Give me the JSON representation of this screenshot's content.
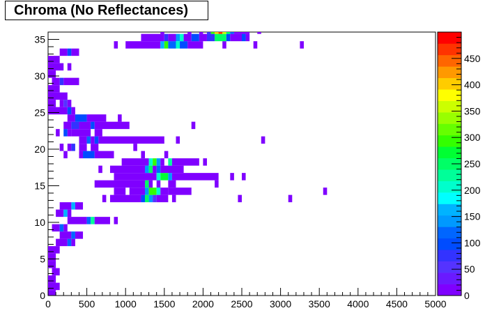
{
  "chart_data": {
    "type": "heatmap",
    "title": "Chroma (No Reflectances)",
    "xlabel": "",
    "ylabel": "",
    "xlim": [
      0,
      5000
    ],
    "ylim": [
      0,
      36
    ],
    "zlim": [
      0,
      500
    ],
    "x_ticks": [
      "0",
      "500",
      "1000",
      "1500",
      "2000",
      "2500",
      "3000",
      "3500",
      "4000",
      "4500",
      "5000"
    ],
    "y_ticks": [
      "0",
      "5",
      "10",
      "15",
      "20",
      "25",
      "30",
      "35"
    ],
    "z_ticks": [
      "0",
      "50",
      "100",
      "150",
      "200",
      "250",
      "300",
      "350",
      "400",
      "450"
    ],
    "bin_width_x": 50,
    "bin_width_y": 1,
    "palette": [
      "#7f00ff",
      "#6a1aff",
      "#5533ff",
      "#3333ff",
      "#004cff",
      "#0066ff",
      "#0099ff",
      "#00b3ff",
      "#00ffff",
      "#00ffcc",
      "#00ff99",
      "#00ff66",
      "#00ff33",
      "#33ff00",
      "#66ff00",
      "#99ff00",
      "#ccff00",
      "#ffff00",
      "#ffcc00",
      "#ff9900",
      "#ff6600",
      "#ff3300",
      "#ff0000"
    ],
    "bins": [
      {
        "y": 0,
        "segments": [
          [
            0,
            100,
            20
          ]
        ]
      },
      {
        "y": 1,
        "segments": [
          [
            0,
            150,
            20
          ]
        ]
      },
      {
        "y": 2,
        "segments": [
          [
            0,
            100,
            20
          ]
        ]
      },
      {
        "y": 3,
        "segments": [
          [
            50,
            150,
            20
          ]
        ]
      },
      {
        "y": 4,
        "segments": [
          [
            0,
            100,
            20
          ]
        ]
      },
      {
        "y": 5,
        "segments": [
          [
            0,
            100,
            20
          ]
        ]
      },
      {
        "y": 6,
        "segments": [
          [
            0,
            150,
            20
          ]
        ]
      },
      {
        "y": 7,
        "segments": [
          [
            100,
            250,
            20
          ],
          [
            250,
            300,
            120
          ],
          [
            300,
            350,
            20
          ]
        ]
      },
      {
        "y": 8,
        "segments": [
          [
            150,
            300,
            20
          ],
          [
            300,
            350,
            120
          ],
          [
            350,
            450,
            20
          ]
        ]
      },
      {
        "y": 9,
        "segments": [
          [
            50,
            150,
            20
          ],
          [
            150,
            200,
            120
          ],
          [
            200,
            250,
            20
          ]
        ]
      },
      {
        "y": 10,
        "segments": [
          [
            250,
            500,
            20
          ],
          [
            500,
            550,
            120
          ],
          [
            550,
            600,
            220
          ],
          [
            600,
            800,
            20
          ],
          [
            850,
            900,
            20
          ]
        ]
      },
      {
        "y": 11,
        "segments": [
          [
            100,
            200,
            20
          ],
          [
            200,
            250,
            170
          ],
          [
            250,
            300,
            20
          ]
        ]
      },
      {
        "y": 12,
        "segments": [
          [
            150,
            300,
            20
          ],
          [
            300,
            350,
            170
          ],
          [
            350,
            450,
            20
          ]
        ]
      },
      {
        "y": 13,
        "segments": [
          [
            700,
            750,
            20
          ],
          [
            800,
            1200,
            20
          ],
          [
            1200,
            1250,
            100
          ],
          [
            1250,
            1300,
            250
          ],
          [
            1300,
            1350,
            150
          ],
          [
            1350,
            1400,
            50
          ],
          [
            1400,
            1550,
            20
          ],
          [
            1600,
            1650,
            20
          ],
          [
            2450,
            2500,
            20
          ],
          [
            3100,
            3150,
            20
          ]
        ]
      },
      {
        "y": 14,
        "segments": [
          [
            850,
            1000,
            20
          ],
          [
            1050,
            1250,
            20
          ],
          [
            1250,
            1300,
            150
          ],
          [
            1300,
            1400,
            300
          ],
          [
            1400,
            1450,
            200
          ],
          [
            1450,
            1550,
            20
          ],
          [
            1550,
            1850,
            20
          ],
          [
            3550,
            3600,
            20
          ]
        ]
      },
      {
        "y": 15,
        "segments": [
          [
            600,
            1250,
            20
          ],
          [
            1250,
            1300,
            250
          ],
          [
            1300,
            1350,
            20
          ],
          [
            1400,
            1450,
            20
          ],
          [
            1550,
            1650,
            20
          ],
          [
            2150,
            2200,
            20
          ]
        ]
      },
      {
        "y": 16,
        "segments": [
          [
            850,
            1400,
            20
          ],
          [
            1400,
            1450,
            200
          ],
          [
            1450,
            1550,
            280
          ],
          [
            1550,
            1600,
            150
          ],
          [
            1600,
            2200,
            20
          ],
          [
            2350,
            2400,
            20
          ],
          [
            2500,
            2550,
            20
          ]
        ]
      },
      {
        "y": 17,
        "segments": [
          [
            650,
            700,
            20
          ],
          [
            800,
            1250,
            20
          ],
          [
            1250,
            1300,
            150
          ],
          [
            1300,
            1350,
            250
          ],
          [
            1350,
            1400,
            20
          ],
          [
            1400,
            1450,
            120
          ],
          [
            1450,
            1750,
            20
          ]
        ]
      },
      {
        "y": 18,
        "segments": [
          [
            950,
            1300,
            20
          ],
          [
            1300,
            1350,
            200
          ],
          [
            1350,
            1400,
            300
          ],
          [
            1400,
            1450,
            150
          ],
          [
            1450,
            1500,
            20
          ],
          [
            1550,
            1600,
            220
          ],
          [
            1600,
            1950,
            20
          ],
          [
            2000,
            2050,
            20
          ]
        ]
      },
      {
        "y": 19,
        "segments": [
          [
            200,
            250,
            20
          ],
          [
            400,
            450,
            20
          ],
          [
            450,
            600,
            100
          ],
          [
            600,
            850,
            20
          ],
          [
            1200,
            1250,
            20
          ],
          [
            1500,
            1550,
            20
          ]
        ]
      },
      {
        "y": 20,
        "segments": [
          [
            150,
            200,
            20
          ],
          [
            250,
            300,
            20
          ],
          [
            300,
            350,
            70
          ],
          [
            400,
            500,
            20
          ],
          [
            550,
            650,
            20
          ],
          [
            1100,
            1150,
            20
          ]
        ]
      },
      {
        "y": 21,
        "segments": [
          [
            400,
            500,
            20
          ],
          [
            500,
            550,
            120
          ],
          [
            550,
            600,
            20
          ],
          [
            600,
            650,
            100
          ],
          [
            650,
            1500,
            20
          ],
          [
            1650,
            1700,
            20
          ],
          [
            2750,
            2800,
            20
          ]
        ]
      },
      {
        "y": 22,
        "segments": [
          [
            100,
            150,
            20
          ],
          [
            200,
            250,
            100
          ],
          [
            250,
            300,
            20
          ],
          [
            300,
            550,
            20
          ],
          [
            600,
            700,
            20
          ]
        ]
      },
      {
        "y": 23,
        "segments": [
          [
            200,
            300,
            20
          ],
          [
            300,
            400,
            70
          ],
          [
            400,
            550,
            20
          ],
          [
            550,
            600,
            100
          ],
          [
            600,
            1050,
            20
          ],
          [
            1850,
            1900,
            20
          ]
        ]
      },
      {
        "y": 24,
        "segments": [
          [
            250,
            350,
            20
          ],
          [
            350,
            500,
            100
          ],
          [
            500,
            750,
            20
          ],
          [
            900,
            950,
            20
          ]
        ]
      },
      {
        "y": 25,
        "segments": [
          [
            0,
            250,
            20
          ],
          [
            250,
            300,
            100
          ],
          [
            300,
            350,
            20
          ]
        ]
      },
      {
        "y": 26,
        "segments": [
          [
            0,
            100,
            20
          ],
          [
            150,
            200,
            20
          ],
          [
            200,
            250,
            50
          ],
          [
            250,
            300,
            20
          ]
        ]
      },
      {
        "y": 27,
        "segments": [
          [
            0,
            250,
            20
          ]
        ]
      },
      {
        "y": 28,
        "segments": [
          [
            0,
            150,
            20
          ]
        ]
      },
      {
        "y": 29,
        "segments": [
          [
            50,
            150,
            20
          ],
          [
            150,
            200,
            70
          ],
          [
            200,
            400,
            20
          ]
        ]
      },
      {
        "y": 30,
        "segments": [
          [
            0,
            100,
            20
          ]
        ]
      },
      {
        "y": 31,
        "segments": [
          [
            0,
            200,
            20
          ],
          [
            250,
            300,
            20
          ]
        ]
      },
      {
        "y": 32,
        "segments": [
          [
            0,
            150,
            20
          ]
        ]
      },
      {
        "y": 33,
        "segments": [
          [
            150,
            250,
            20
          ],
          [
            250,
            300,
            100
          ],
          [
            300,
            400,
            20
          ]
        ]
      },
      {
        "y": 34,
        "segments": [
          [
            850,
            900,
            20
          ],
          [
            1000,
            1450,
            20
          ],
          [
            1450,
            1500,
            170
          ],
          [
            1500,
            1550,
            300
          ],
          [
            1550,
            1650,
            120
          ],
          [
            1650,
            1700,
            200
          ],
          [
            1700,
            1800,
            100
          ],
          [
            1800,
            2000,
            20
          ],
          [
            2250,
            2300,
            20
          ],
          [
            2650,
            2700,
            20
          ],
          [
            3250,
            3300,
            20
          ]
        ]
      },
      {
        "y": 35,
        "segments": [
          [
            1200,
            1500,
            20
          ],
          [
            1500,
            1550,
            70
          ],
          [
            1550,
            1650,
            20
          ],
          [
            1650,
            1700,
            150
          ],
          [
            1700,
            1750,
            200
          ],
          [
            1750,
            1850,
            20
          ],
          [
            1850,
            1950,
            100
          ],
          [
            1950,
            2050,
            20
          ],
          [
            2050,
            2150,
            70
          ],
          [
            2150,
            2300,
            250
          ],
          [
            2300,
            2350,
            100
          ],
          [
            2350,
            2500,
            20
          ],
          [
            2500,
            2550,
            100
          ],
          [
            2550,
            2600,
            20
          ]
        ]
      },
      {
        "y": 36,
        "segments": [
          [
            1450,
            1500,
            20
          ],
          [
            1800,
            1850,
            20
          ],
          [
            1950,
            2000,
            20
          ],
          [
            2050,
            2100,
            70
          ],
          [
            2100,
            2150,
            300
          ],
          [
            2150,
            2200,
            400
          ],
          [
            2200,
            2250,
            470
          ],
          [
            2250,
            2300,
            350
          ],
          [
            2300,
            2350,
            250
          ],
          [
            2350,
            2400,
            120
          ],
          [
            2400,
            2600,
            20
          ],
          [
            2700,
            2750,
            20
          ]
        ]
      }
    ]
  }
}
